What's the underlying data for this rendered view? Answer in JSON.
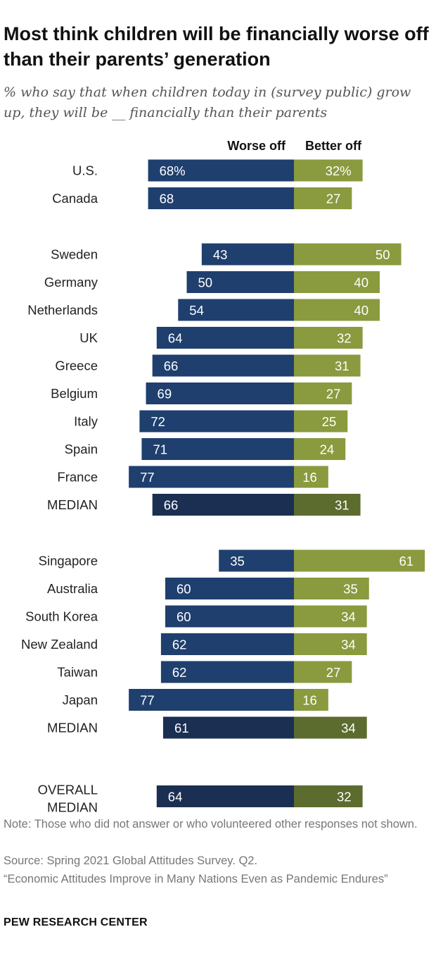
{
  "title": "Most think children will be financially worse off than their parents’ generation",
  "subtitle": "% who say that when children today in (survey public) grow up, they will be __ financially than their parents",
  "note": "Note: Those who did not answer or who volunteered other responses not shown.",
  "source": "Source: Spring 2021 Global Attitudes Survey. Q2.",
  "report": "“Economic Attitudes Improve in Many Nations Even as Pandemic Endures”",
  "brand": "PEW RESEARCH CENTER",
  "colors": {
    "worse": "#1f3f6e",
    "better": "#8a9a3e",
    "worse_median": "#1a2f52",
    "better_median": "#5c6b2e"
  },
  "chart_data": {
    "type": "bar",
    "orientation": "horizontal-diverging",
    "series": [
      {
        "name": "Worse off",
        "key": "worse"
      },
      {
        "name": "Better off",
        "key": "better"
      }
    ],
    "groups": [
      {
        "rows": [
          {
            "label": "U.S.",
            "worse": 68,
            "better": 32,
            "worse_text": "68%",
            "better_text": "32%"
          },
          {
            "label": "Canada",
            "worse": 68,
            "better": 27
          }
        ]
      },
      {
        "rows": [
          {
            "label": "Sweden",
            "worse": 43,
            "better": 50
          },
          {
            "label": "Germany",
            "worse": 50,
            "better": 40
          },
          {
            "label": "Netherlands",
            "worse": 54,
            "better": 40
          },
          {
            "label": "UK",
            "worse": 64,
            "better": 32
          },
          {
            "label": "Greece",
            "worse": 66,
            "better": 31
          },
          {
            "label": "Belgium",
            "worse": 69,
            "better": 27
          },
          {
            "label": "Italy",
            "worse": 72,
            "better": 25
          },
          {
            "label": "Spain",
            "worse": 71,
            "better": 24
          },
          {
            "label": "France",
            "worse": 77,
            "better": 16
          },
          {
            "label": "MEDIAN",
            "worse": 66,
            "better": 31,
            "median": true
          }
        ]
      },
      {
        "rows": [
          {
            "label": "Singapore",
            "worse": 35,
            "better": 61
          },
          {
            "label": "Australia",
            "worse": 60,
            "better": 35
          },
          {
            "label": "South Korea",
            "worse": 60,
            "better": 34
          },
          {
            "label": "New Zealand",
            "worse": 62,
            "better": 34
          },
          {
            "label": "Taiwan",
            "worse": 62,
            "better": 27
          },
          {
            "label": "Japan",
            "worse": 77,
            "better": 16
          },
          {
            "label": "MEDIAN",
            "worse": 61,
            "better": 34,
            "median": true
          }
        ]
      },
      {
        "rows": [
          {
            "label": "OVERALL MEDIAN",
            "label_lines": [
              "OVERALL",
              "MEDIAN"
            ],
            "worse": 64,
            "better": 32,
            "median": true
          }
        ]
      }
    ],
    "xlim": [
      -80,
      80
    ]
  }
}
